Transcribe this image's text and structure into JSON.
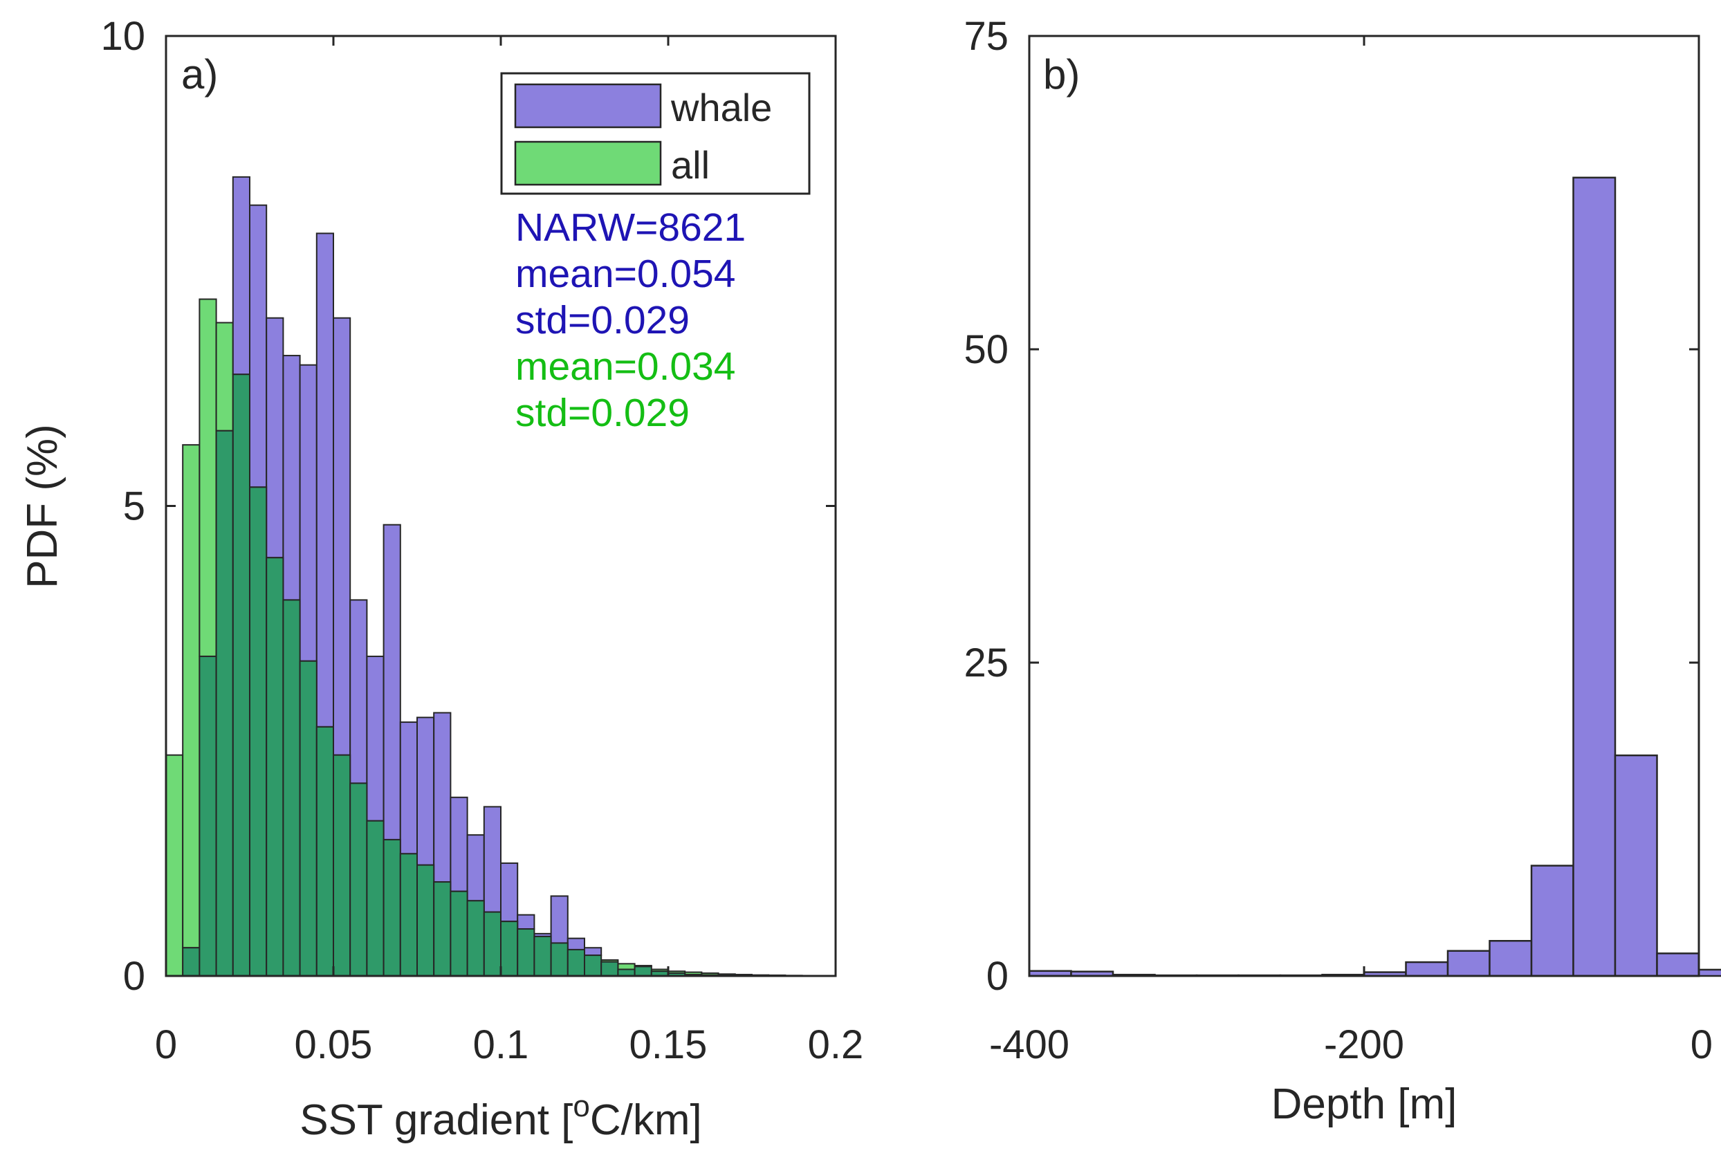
{
  "chart_data": [
    {
      "type": "bar",
      "subtype": "overlapping-histogram",
      "panel_label": "a)",
      "xlabel": "SST gradient [",
      "xlabel_sup": "o",
      "xlabel_tail": "C/km]",
      "ylabel": "PDF (%)",
      "xlim": [
        0,
        0.2
      ],
      "ylim": [
        0,
        10
      ],
      "bin_width": 0.005,
      "x_ticks": [
        0,
        0.05,
        0.1,
        0.15,
        0.2
      ],
      "x_tick_labels": [
        "0",
        "0.05",
        "0.1",
        "0.15",
        "0.2"
      ],
      "y_ticks": [
        0,
        5,
        10
      ],
      "y_tick_labels": [
        "0",
        "5",
        "10"
      ],
      "legend_position": "top-right",
      "series": [
        {
          "name": "whale",
          "color": "#8c80de",
          "values": [
            0,
            0.3,
            3.4,
            5.8,
            8.5,
            8.2,
            7.0,
            6.6,
            6.5,
            7.9,
            7.0,
            4.0,
            3.4,
            4.8,
            2.7,
            2.75,
            2.8,
            1.9,
            1.5,
            1.8,
            1.2,
            0.65,
            0.45,
            0.85,
            0.4,
            0.3,
            0.15,
            0.07,
            0.11,
            0.05,
            0.03,
            0.015,
            0.01,
            0.005,
            0.002,
            0.001,
            0.001,
            0.001,
            0.0005,
            0.0003
          ]
        },
        {
          "name": "all",
          "color": "#6fda76",
          "values": [
            2.35,
            5.65,
            7.2,
            6.95,
            6.4,
            5.2,
            4.45,
            4.0,
            3.35,
            2.65,
            2.35,
            2.05,
            1.65,
            1.45,
            1.3,
            1.18,
            1.0,
            0.9,
            0.8,
            0.68,
            0.58,
            0.5,
            0.42,
            0.35,
            0.28,
            0.22,
            0.17,
            0.13,
            0.1,
            0.07,
            0.05,
            0.04,
            0.03,
            0.02,
            0.015,
            0.01,
            0.008,
            0.005,
            0.003,
            0.002
          ]
        }
      ],
      "overlap_color": "#2f9a69",
      "annotations": [
        {
          "text": "NARW=8621",
          "color": "#1e14b4"
        },
        {
          "text": "mean=0.054",
          "color": "#1e14b4"
        },
        {
          "text": "std=0.029",
          "color": "#1e14b4"
        },
        {
          "text": "mean=0.034",
          "color": "#14be14"
        },
        {
          "text": "std=0.029",
          "color": "#14be14"
        }
      ]
    },
    {
      "type": "bar",
      "subtype": "histogram",
      "panel_label": "b)",
      "xlabel": "Depth [m]",
      "ylabel": "",
      "xlim": [
        -400,
        0
      ],
      "ylim": [
        0,
        75
      ],
      "bin_width": 25,
      "bin_start": -400,
      "x_ticks": [
        -400,
        -200,
        0
      ],
      "x_tick_labels": [
        "-400",
        "-200",
        "0"
      ],
      "y_ticks": [
        0,
        25,
        50,
        75
      ],
      "y_tick_labels": [
        "0",
        "25",
        "50",
        "75"
      ],
      "series": [
        {
          "name": "whale",
          "color": "#8c80de",
          "values": [
            0.4,
            0.35,
            0.1,
            0.05,
            0.05,
            0.05,
            0.05,
            0.1,
            0.3,
            1.1,
            2.0,
            2.8,
            8.8,
            63.7,
            17.6,
            1.8,
            0.5
          ]
        }
      ]
    }
  ]
}
